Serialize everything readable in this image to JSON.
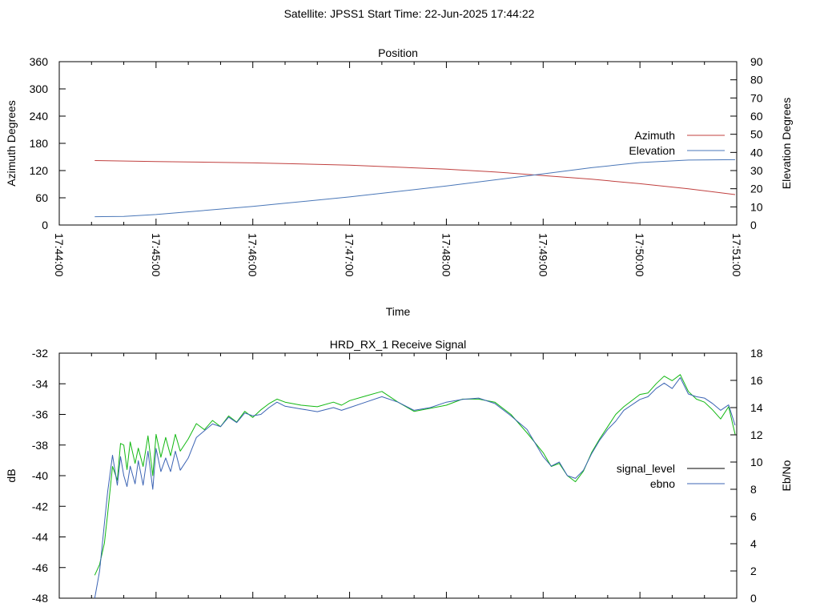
{
  "header": {
    "title": "Satellite: JPSS1    Start Time: 22-Jun-2025 17:44:22"
  },
  "colors": {
    "azimuth": "#c0403f",
    "elevation": "#4a77b8",
    "signal_level": "#12b812",
    "ebno": "#3c64b4",
    "axis": "#000000"
  },
  "chart_data": [
    {
      "type": "line",
      "title": "Position",
      "xlabel": "Time",
      "ylabel": "Azimuth Degrees",
      "y2label": "Elevation Degrees",
      "xlim": [
        "17:44:00",
        "17:51:00"
      ],
      "xticks": [
        "17:44:00",
        "17:45:00",
        "17:46:00",
        "17:47:00",
        "17:48:00",
        "17:49:00",
        "17:50:00",
        "17:51:00"
      ],
      "ylim": [
        0,
        360
      ],
      "yticks": [
        0,
        60,
        120,
        180,
        240,
        300,
        360
      ],
      "y2lim": [
        0,
        90
      ],
      "y2ticks": [
        0,
        10,
        20,
        30,
        40,
        50,
        60,
        70,
        80,
        90
      ],
      "grid": false,
      "legend_position": "right",
      "series": [
        {
          "name": "Azimuth",
          "axis": "y",
          "color": "#c0403f",
          "x": [
            "17:44:22",
            "17:45:00",
            "17:46:00",
            "17:47:00",
            "17:48:00",
            "17:48:30",
            "17:49:00",
            "17:49:30",
            "17:50:00",
            "17:50:30",
            "17:50:59"
          ],
          "values": [
            142,
            140,
            137,
            132,
            123,
            117,
            109,
            101,
            91,
            80,
            67
          ]
        },
        {
          "name": "Elevation",
          "axis": "y2",
          "color": "#4a77b8",
          "x": [
            "17:44:22",
            "17:44:40",
            "17:45:00",
            "17:46:00",
            "17:47:00",
            "17:48:00",
            "17:49:00",
            "17:49:30",
            "17:50:00",
            "17:50:30",
            "17:50:59"
          ],
          "values": [
            4.6,
            4.7,
            5.8,
            10.3,
            15.5,
            21.5,
            28.2,
            31.6,
            34.4,
            35.8,
            36.0
          ]
        }
      ]
    },
    {
      "type": "line",
      "title": "HRD_RX_1 Receive Signal",
      "ylabel": "dB",
      "y2label": "Eb/No",
      "xlim": [
        "17:44:00",
        "17:51:00"
      ],
      "ylim": [
        -48,
        -32
      ],
      "yticks": [
        -48,
        -46,
        -44,
        -42,
        -40,
        -38,
        -36,
        -34,
        -32
      ],
      "y2lim": [
        0,
        18
      ],
      "y2ticks": [
        0,
        2,
        4,
        6,
        8,
        10,
        12,
        14,
        16,
        18
      ],
      "grid": false,
      "legend_position": "right",
      "series": [
        {
          "name": "signal_level",
          "axis": "y",
          "color": "#12b812",
          "x": [
            "17:44:22",
            "17:44:25",
            "17:44:28",
            "17:44:30",
            "17:44:33",
            "17:44:36",
            "17:44:38",
            "17:44:40",
            "17:44:42",
            "17:44:44",
            "17:44:47",
            "17:44:49",
            "17:44:52",
            "17:44:55",
            "17:44:58",
            "17:45:00",
            "17:45:03",
            "17:45:06",
            "17:45:09",
            "17:45:12",
            "17:45:15",
            "17:45:20",
            "17:45:25",
            "17:45:30",
            "17:45:35",
            "17:45:40",
            "17:45:45",
            "17:45:50",
            "17:45:55",
            "17:46:00",
            "17:46:05",
            "17:46:10",
            "17:46:15",
            "17:46:20",
            "17:46:30",
            "17:46:40",
            "17:46:50",
            "17:46:55",
            "17:47:00",
            "17:47:10",
            "17:47:20",
            "17:47:30",
            "17:47:40",
            "17:47:50",
            "17:48:00",
            "17:48:10",
            "17:48:20",
            "17:48:30",
            "17:48:40",
            "17:48:50",
            "17:49:00",
            "17:49:05",
            "17:49:10",
            "17:49:15",
            "17:49:20",
            "17:49:25",
            "17:49:30",
            "17:49:35",
            "17:49:40",
            "17:49:45",
            "17:49:50",
            "17:50:00",
            "17:50:05",
            "17:50:10",
            "17:50:15",
            "17:50:20",
            "17:50:25",
            "17:50:30",
            "17:50:35",
            "17:50:40",
            "17:50:45",
            "17:50:50",
            "17:50:55",
            "17:50:59"
          ],
          "values": [
            -46.5,
            -45.8,
            -44.4,
            -42.5,
            -39.4,
            -40.3,
            -37.9,
            -38.0,
            -39.6,
            -37.8,
            -39.2,
            -38.2,
            -39.4,
            -37.4,
            -40.0,
            -37.3,
            -38.8,
            -37.5,
            -38.7,
            -37.3,
            -38.4,
            -37.6,
            -36.6,
            -37.0,
            -36.4,
            -36.8,
            -36.1,
            -36.5,
            -35.8,
            -36.2,
            -35.7,
            -35.3,
            -35.0,
            -35.2,
            -35.4,
            -35.5,
            -35.2,
            -35.4,
            -35.1,
            -34.8,
            -34.5,
            -35.2,
            -35.8,
            -35.6,
            -35.4,
            -35.0,
            -35.0,
            -35.2,
            -36.0,
            -37.2,
            -38.5,
            -39.4,
            -39.2,
            -40.0,
            -40.4,
            -39.7,
            -38.5,
            -37.6,
            -36.8,
            -36.0,
            -35.5,
            -34.7,
            -34.6,
            -34.0,
            -33.5,
            -33.8,
            -33.4,
            -34.5,
            -35.0,
            -35.2,
            -35.7,
            -36.3,
            -35.5,
            -37.3
          ]
        },
        {
          "name": "ebno",
          "axis": "y2",
          "color": "#3c64b4",
          "x": [
            "17:44:22",
            "17:44:25",
            "17:44:28",
            "17:44:30",
            "17:44:33",
            "17:44:36",
            "17:44:38",
            "17:44:40",
            "17:44:42",
            "17:44:44",
            "17:44:47",
            "17:44:49",
            "17:44:52",
            "17:44:55",
            "17:44:58",
            "17:45:00",
            "17:45:03",
            "17:45:06",
            "17:45:09",
            "17:45:12",
            "17:45:15",
            "17:45:20",
            "17:45:25",
            "17:45:30",
            "17:45:35",
            "17:45:40",
            "17:45:45",
            "17:45:50",
            "17:45:55",
            "17:46:00",
            "17:46:05",
            "17:46:10",
            "17:46:15",
            "17:46:20",
            "17:46:30",
            "17:46:40",
            "17:46:50",
            "17:46:55",
            "17:47:00",
            "17:47:10",
            "17:47:20",
            "17:47:30",
            "17:47:40",
            "17:47:50",
            "17:48:00",
            "17:48:10",
            "17:48:20",
            "17:48:30",
            "17:48:40",
            "17:48:50",
            "17:49:00",
            "17:49:05",
            "17:49:10",
            "17:49:15",
            "17:49:20",
            "17:49:25",
            "17:49:30",
            "17:49:35",
            "17:49:40",
            "17:49:45",
            "17:49:50",
            "17:50:00",
            "17:50:05",
            "17:50:10",
            "17:50:15",
            "17:50:20",
            "17:50:25",
            "17:50:30",
            "17:50:35",
            "17:50:40",
            "17:50:45",
            "17:50:50",
            "17:50:55",
            "17:50:59"
          ],
          "values": [
            0.0,
            2.0,
            5.5,
            7.8,
            10.5,
            8.3,
            10.4,
            9.0,
            8.2,
            9.7,
            8.4,
            10.1,
            8.3,
            10.8,
            8.0,
            11.0,
            9.3,
            10.3,
            9.3,
            10.8,
            9.4,
            10.3,
            11.8,
            12.3,
            12.8,
            12.6,
            13.3,
            12.9,
            13.6,
            13.4,
            13.5,
            14.0,
            14.4,
            14.1,
            13.9,
            13.7,
            14.0,
            13.8,
            14.0,
            14.4,
            14.8,
            14.4,
            13.8,
            14.0,
            14.4,
            14.6,
            14.7,
            14.3,
            13.4,
            12.4,
            10.4,
            9.7,
            10.0,
            9.0,
            8.8,
            9.4,
            10.6,
            11.6,
            12.4,
            13.0,
            13.8,
            14.6,
            14.8,
            15.4,
            15.8,
            15.4,
            16.2,
            15.0,
            14.8,
            14.7,
            14.3,
            13.8,
            14.2,
            12.7
          ]
        }
      ]
    }
  ]
}
